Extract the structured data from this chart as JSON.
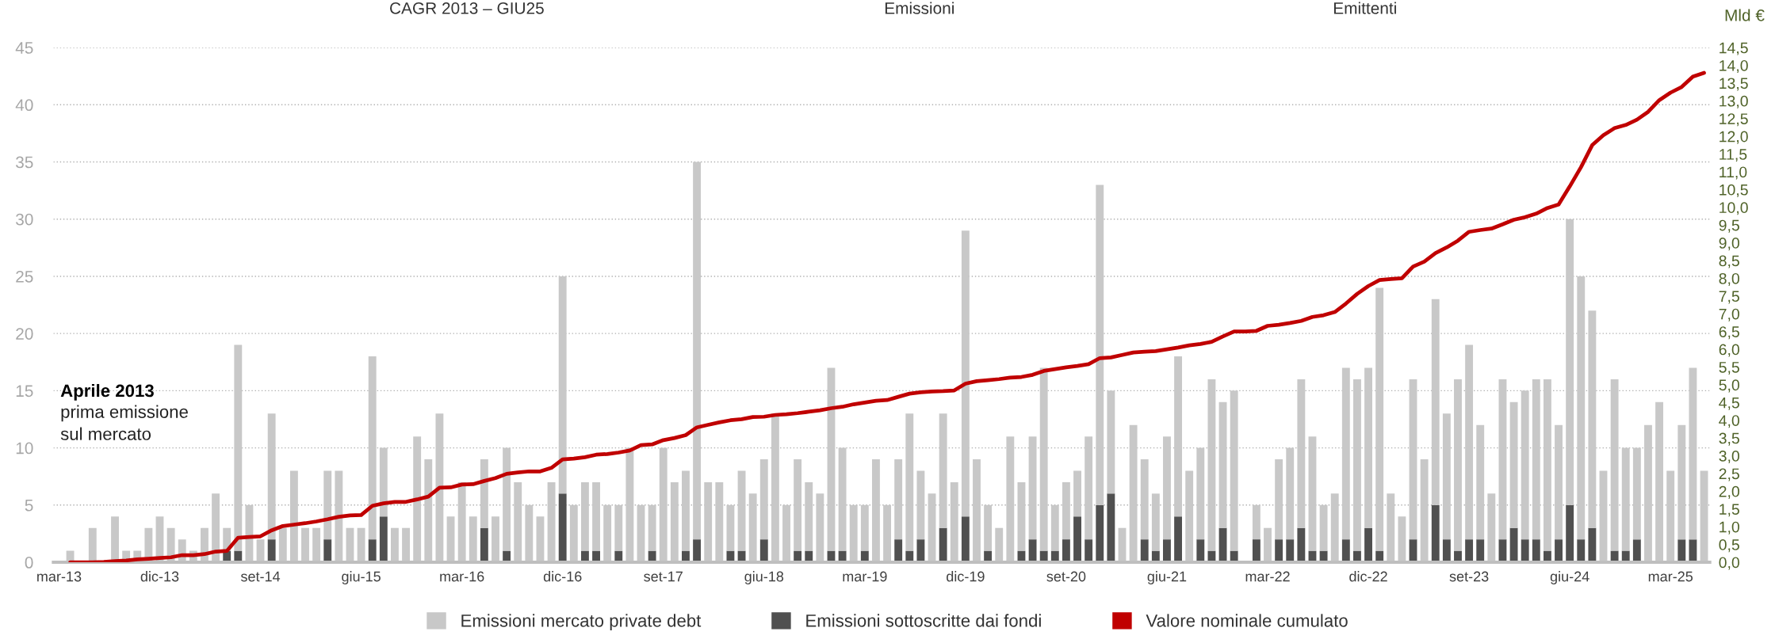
{
  "chart_data": {
    "type": "bar",
    "stacked": true,
    "categories": [
      "mar-13",
      null,
      null,
      null,
      null,
      null,
      null,
      null,
      null,
      "dic-13",
      null,
      null,
      null,
      null,
      null,
      null,
      null,
      null,
      "set-14",
      null,
      null,
      null,
      null,
      null,
      null,
      null,
      null,
      "giu-15",
      null,
      null,
      null,
      null,
      null,
      null,
      null,
      null,
      "mar-16",
      null,
      null,
      null,
      null,
      null,
      null,
      null,
      null,
      "dic-16",
      null,
      null,
      null,
      null,
      null,
      null,
      null,
      null,
      "set-17",
      null,
      null,
      null,
      null,
      null,
      null,
      null,
      null,
      "giu-18",
      null,
      null,
      null,
      null,
      null,
      null,
      null,
      null,
      "mar-19",
      null,
      null,
      null,
      null,
      null,
      null,
      null,
      null,
      "dic-19",
      null,
      null,
      null,
      null,
      null,
      null,
      null,
      null,
      "set-20",
      null,
      null,
      null,
      null,
      null,
      null,
      null,
      null,
      "giu-21",
      null,
      null,
      null,
      null,
      null,
      null,
      null,
      null,
      "mar-22",
      null,
      null,
      null,
      null,
      null,
      null,
      null,
      null,
      "dic-22",
      null,
      null,
      null,
      null,
      null,
      null,
      null,
      null,
      "set-23",
      null,
      null,
      null,
      null,
      null,
      null,
      null,
      null,
      "giu-24",
      null,
      null,
      null,
      null,
      null,
      null,
      null,
      null,
      "mar-25",
      null,
      null,
      null
    ],
    "series": [
      {
        "name": "Emissioni sottoscritte dai fondi",
        "color": "#505050",
        "values": [
          null,
          null,
          null,
          null,
          null,
          null,
          null,
          null,
          null,
          null,
          null,
          null,
          null,
          null,
          null,
          1,
          1,
          null,
          null,
          2,
          null,
          null,
          null,
          null,
          2,
          null,
          null,
          null,
          2,
          4,
          null,
          null,
          null,
          null,
          null,
          null,
          null,
          null,
          3,
          null,
          1,
          null,
          null,
          null,
          null,
          6,
          null,
          1,
          1,
          null,
          1,
          null,
          null,
          1,
          null,
          null,
          1,
          2,
          null,
          null,
          1,
          1,
          null,
          2,
          null,
          null,
          1,
          1,
          null,
          1,
          1,
          null,
          1,
          null,
          null,
          2,
          1,
          2,
          null,
          3,
          null,
          4,
          null,
          1,
          null,
          null,
          1,
          2,
          1,
          1,
          2,
          4,
          2,
          5,
          6,
          null,
          null,
          2,
          1,
          2,
          4,
          null,
          2,
          1,
          3,
          1,
          null,
          2,
          null,
          2,
          2,
          3,
          1,
          1,
          null,
          2,
          1,
          3,
          1,
          null,
          null,
          2,
          null,
          5,
          2,
          1,
          2,
          2,
          null,
          2,
          3,
          2,
          2,
          1,
          2,
          5,
          2,
          3,
          null,
          1,
          1,
          2,
          null,
          null,
          null,
          2,
          2,
          null
        ]
      },
      {
        "name": "Emissioni mercato private debt",
        "color": "#c8c8c8",
        "values": [
          null,
          1,
          null,
          3,
          null,
          4,
          1,
          1,
          3,
          4,
          3,
          2,
          1,
          3,
          6,
          2,
          18,
          5,
          2,
          11,
          3,
          8,
          3,
          3,
          6,
          8,
          3,
          3,
          16,
          6,
          3,
          3,
          11,
          9,
          13,
          4,
          7,
          4,
          6,
          4,
          9,
          7,
          5,
          4,
          7,
          19,
          5,
          6,
          6,
          5,
          4,
          10,
          5,
          4,
          10,
          7,
          7,
          33,
          7,
          7,
          4,
          7,
          6,
          7,
          13,
          5,
          8,
          6,
          6,
          16,
          9,
          5,
          4,
          9,
          5,
          7,
          12,
          6,
          6,
          10,
          7,
          25,
          9,
          4,
          3,
          11,
          6,
          9,
          16,
          4,
          5,
          4,
          9,
          28,
          9,
          3,
          12,
          7,
          5,
          9,
          14,
          8,
          8,
          15,
          11,
          14,
          null,
          3,
          3,
          7,
          8,
          13,
          10,
          4,
          6,
          15,
          15,
          14,
          23,
          6,
          4,
          14,
          9,
          18,
          11,
          15,
          17,
          10,
          6,
          14,
          11,
          13,
          14,
          15,
          10,
          25,
          23,
          19,
          8,
          15,
          9,
          8,
          12,
          14,
          8,
          10,
          15,
          8
        ]
      },
      {
        "name": "Valore nominale cumulato",
        "type": "line",
        "axis": "y2",
        "color": "#c00000",
        "values": [
          null,
          0,
          0,
          0,
          0.01,
          0.03,
          0.05,
          0.08,
          0.1,
          0.12,
          0.14,
          0.2,
          0.2,
          0.23,
          0.3,
          0.32,
          0.69,
          0.71,
          0.73,
          0.9,
          1.02,
          1.06,
          1.1,
          1.15,
          1.21,
          1.28,
          1.32,
          1.33,
          1.59,
          1.66,
          1.7,
          1.7,
          1.77,
          1.85,
          2.1,
          2.11,
          2.19,
          2.2,
          2.29,
          2.37,
          2.49,
          2.53,
          2.56,
          2.56,
          2.66,
          2.9,
          2.92,
          2.96,
          3.03,
          3.05,
          3.09,
          3.15,
          3.3,
          3.32,
          3.44,
          3.5,
          3.58,
          3.8,
          3.87,
          3.94,
          4.0,
          4.03,
          4.09,
          4.1,
          4.15,
          4.17,
          4.2,
          4.24,
          4.28,
          4.34,
          4.38,
          4.45,
          4.5,
          4.55,
          4.57,
          4.66,
          4.75,
          4.79,
          4.81,
          4.82,
          4.84,
          5.03,
          5.1,
          5.13,
          5.16,
          5.2,
          5.22,
          5.28,
          5.39,
          5.44,
          5.49,
          5.53,
          5.58,
          5.75,
          5.77,
          5.84,
          5.91,
          5.93,
          5.95,
          6.0,
          6.05,
          6.11,
          6.15,
          6.21,
          6.36,
          6.5,
          6.5,
          6.52,
          6.66,
          6.69,
          6.74,
          6.8,
          6.91,
          6.96,
          7.05,
          7.29,
          7.56,
          7.78,
          7.95,
          7.98,
          8.0,
          8.33,
          8.47,
          8.71,
          8.87,
          9.06,
          9.31,
          9.36,
          9.4,
          9.52,
          9.65,
          9.72,
          9.82,
          9.98,
          10.08,
          10.59,
          11.13,
          11.75,
          12.03,
          12.23,
          12.32,
          12.47,
          12.69,
          13.02,
          13.23,
          13.39,
          13.68,
          13.79
        ]
      }
    ],
    "ylim": [
      0,
      45
    ],
    "yticks": [
      0,
      5,
      10,
      15,
      20,
      25,
      30,
      35,
      40,
      45
    ],
    "y2label": "Mld €",
    "y2lim": [
      0,
      14.5
    ],
    "y2ticks": [
      {
        "value": 0,
        "label": "0,0"
      },
      {
        "value": 0.5,
        "label": "0,5"
      },
      {
        "value": 1,
        "label": "1,0"
      },
      {
        "value": 1.5,
        "label": "1,5"
      },
      {
        "value": 2,
        "label": "2,0"
      },
      {
        "value": 2.5,
        "label": "2,5"
      },
      {
        "value": 3,
        "label": "3,0"
      },
      {
        "value": 3.5,
        "label": "3,5"
      },
      {
        "value": 4,
        "label": "4,0"
      },
      {
        "value": 4.5,
        "label": "4,5"
      },
      {
        "value": 5,
        "label": "5,0"
      },
      {
        "value": 5.5,
        "label": "5,5"
      },
      {
        "value": 6,
        "label": "6,0"
      },
      {
        "value": 6.5,
        "label": "6,5"
      },
      {
        "value": 7,
        "label": "7,0"
      },
      {
        "value": 7.5,
        "label": "7,5"
      },
      {
        "value": 8,
        "label": "8,0"
      },
      {
        "value": 8.5,
        "label": "8,5"
      },
      {
        "value": 9,
        "label": "9,0"
      },
      {
        "value": 9.5,
        "label": "9,5"
      },
      {
        "value": 10,
        "label": "10,0"
      },
      {
        "value": 10.5,
        "label": "10,5"
      },
      {
        "value": 11,
        "label": "11,0"
      },
      {
        "value": 11.5,
        "label": "11,5"
      },
      {
        "value": 12,
        "label": "12,0"
      },
      {
        "value": 12.5,
        "label": "12,5"
      },
      {
        "value": 13,
        "label": "13,0"
      },
      {
        "value": 13.5,
        "label": "13,5"
      },
      {
        "value": 14,
        "label": "14,0"
      },
      {
        "value": 14.5,
        "label": "14,5"
      }
    ],
    "grid": "y",
    "legend": "bottom",
    "annotations": [
      "CAGR 2013 – GIU25",
      "Emissioni",
      "Emittenti",
      "Aprile 2013",
      "prima emissione\nsul mercato"
    ]
  }
}
